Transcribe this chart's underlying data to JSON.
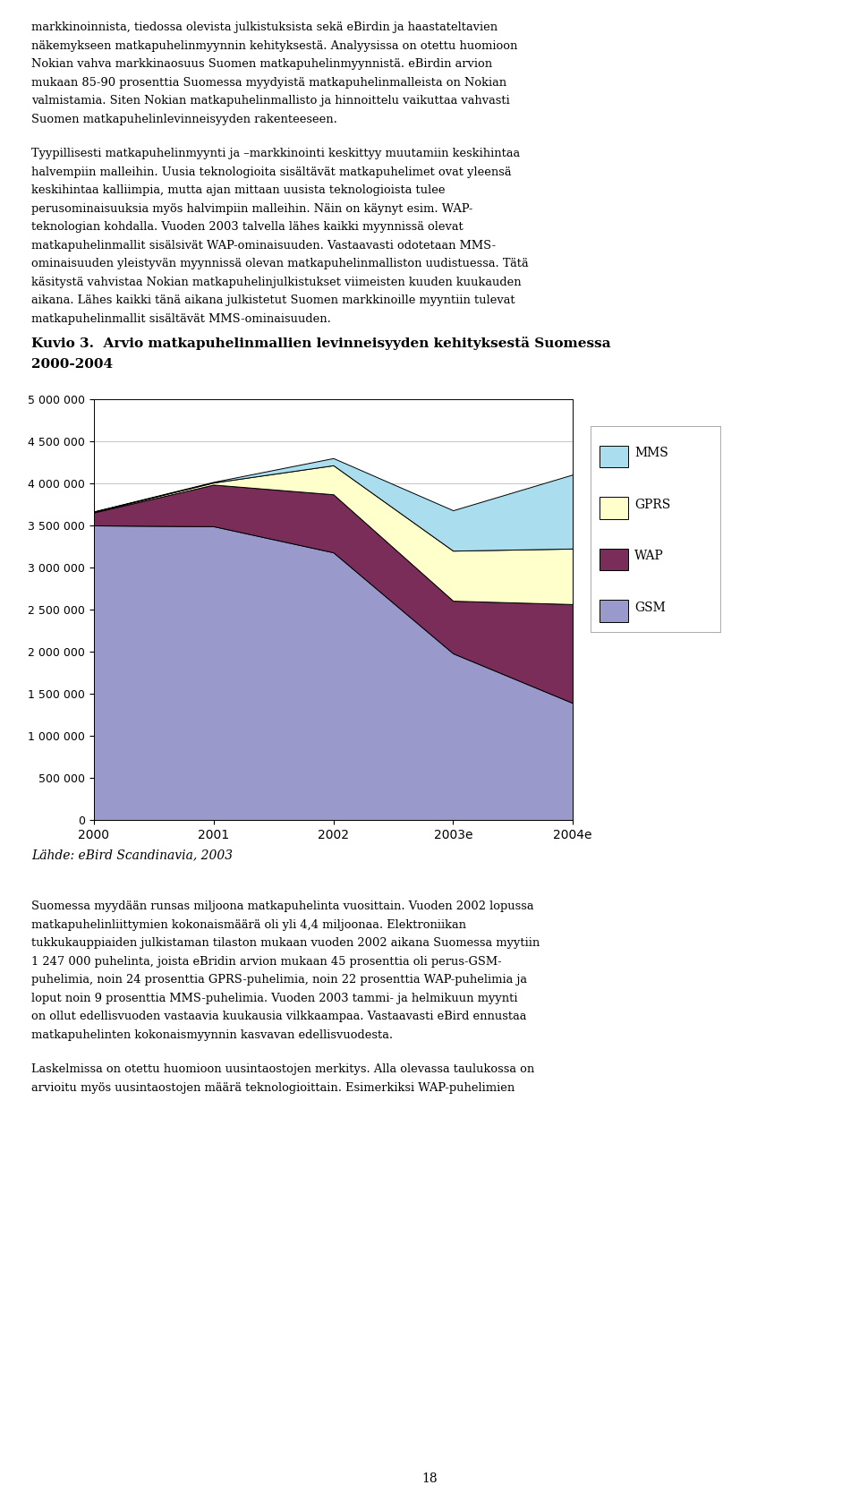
{
  "x_labels": [
    "2000",
    "2001",
    "2002",
    "2003e",
    "2004e"
  ],
  "x_positions": [
    0,
    1,
    2,
    3,
    4
  ],
  "GSM": [
    3500000,
    3490000,
    3180000,
    1980000,
    1390000
  ],
  "WAP": [
    155000,
    495000,
    690000,
    625000,
    1175000
  ],
  "GPRS": [
    8000,
    25000,
    345000,
    595000,
    660000
  ],
  "MMS": [
    4000,
    8000,
    85000,
    480000,
    880000
  ],
  "color_GSM": "#9999CC",
  "color_WAP": "#7B2D5A",
  "color_GPRS": "#FFFFCC",
  "color_MMS": "#AADDEE",
  "ylim_max": 5000000,
  "ytick_step": 500000,
  "background": "#ffffff",
  "legend_order": [
    "MMS",
    "GPRS",
    "WAP",
    "GSM"
  ],
  "chart_title1": "Kuvio 3.  Arvio matkapuhelinmallien levinneisyyden kehityksestä Suomessa",
  "chart_title2": "2000-2004",
  "source": "Lähde: eBird Scandinavia, 2003",
  "para1_lines": [
    "markkinoinnista, tiedossa olevista julkistuksista sekä eBirdin ja haastateltavien",
    "näkemykseen matkapuhelinmyynnin kehityksestä. Analyysissa on otettu huomioon",
    "Nokian vahva markkinaosuus Suomen matkapuhelinmyynnistä. eBirdin arvion",
    "mukaan 85-90 prosenttia Suomessa myydyistä matkapuhelinmalleista on Nokian",
    "valmistamia. Siten Nokian matkapuhelinmallisto ja hinnoittelu vaikuttaa vahvasti",
    "Suomen matkapuhelinlevinneisyyden rakenteeseen."
  ],
  "para2_lines": [
    "Tyypillisesti matkapuhelinmyynti ja –markkinointi keskittyy muutamiin keskihintaa",
    "halvempiin malleihin. Uusia teknologioita sisältävät matkapuhelimet ovat yleensä",
    "keskihintaa kalliimpia, mutta ajan mittaan uusista teknologioista tulee",
    "perusominaisuuksia myös halvimpiin malleihin. Näin on käynyt esim. WAP-",
    "teknologian kohdalla. Vuoden 2003 talvella lähes kaikki myynnissä olevat",
    "matkapuhelinmallit sisälsivät WAP-ominaisuuden. Vastaavasti odotetaan MMS-",
    "ominaisuuden yleistyvän myynnissä olevan matkapuhelinmalliston uudistuessa. Tätä",
    "käsitystä vahvistaa Nokian matkapuhelinjulkistukset viimeisten kuuden kuukauden",
    "aikana. Lähes kaikki tänä aikana julkistetut Suomen markkinoille myyntiin tulevat",
    "matkapuhelinmallit sisältävät MMS-ominaisuuden."
  ],
  "bot1_lines": [
    "Suomessa myydään runsas miljoona matkapuhelinta vuosittain. Vuoden 2002 lopussa",
    "matkapuhelinliittymien kokonaismäärä oli yli 4,4 miljoonaa. Elektroniikan",
    "tukkukauppiaiden julkistaman tilaston mukaan vuoden 2002 aikana Suomessa myytiin",
    "1 247 000 puhelinta, joista eBridin arvion mukaan 45 prosenttia oli perus-GSM-",
    "puhelimia, noin 24 prosenttia GPRS-puhelimia, noin 22 prosenttia WAP-puhelimia ja",
    "loput noin 9 prosenttia MMS-puhelimia. Vuoden 2003 tammi- ja helmikuun myynti",
    "on ollut edellisvuoden vastaavia kuukausia vilkkaampaa. Vastaavasti eBird ennustaa",
    "matkapuhelinten kokonaismyynnin kasvavan edellisvuodesta."
  ],
  "bot2_lines": [
    "Laskelmissa on otettu huomioon uusintaostojen merkitys. Alla olevassa taulukossa on",
    "arvioitu myös uusintaostojen määrä teknologioittain. Esimerkiksi WAP-puhelimien"
  ],
  "page_number": "18"
}
